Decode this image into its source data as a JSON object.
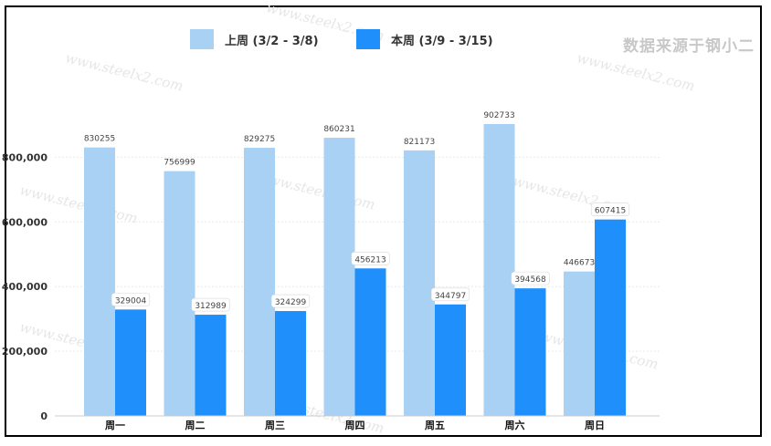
{
  "source_text": "数据来源于钢小二",
  "watermark_text": "www.steelx2.com",
  "chart_data": {
    "type": "bar",
    "categories": [
      "周一",
      "周二",
      "周三",
      "周四",
      "周五",
      "周六",
      "周日"
    ],
    "series": [
      {
        "name": "上周 (3/2 - 3/8)",
        "color": "#a8d1f3",
        "values": [
          830255,
          756999,
          829275,
          860231,
          821173,
          902733,
          446673
        ]
      },
      {
        "name": "本周 (3/9 - 3/15)",
        "color": "#1f90fb",
        "values": [
          329004,
          312989,
          324299,
          456213,
          344797,
          394568,
          607415
        ]
      }
    ],
    "yticks": [
      "0",
      "200,000",
      "400,000",
      "600,000",
      "800,000"
    ],
    "ylim": [
      0,
      1000000
    ],
    "grid": true,
    "legend_position": "top-center"
  }
}
